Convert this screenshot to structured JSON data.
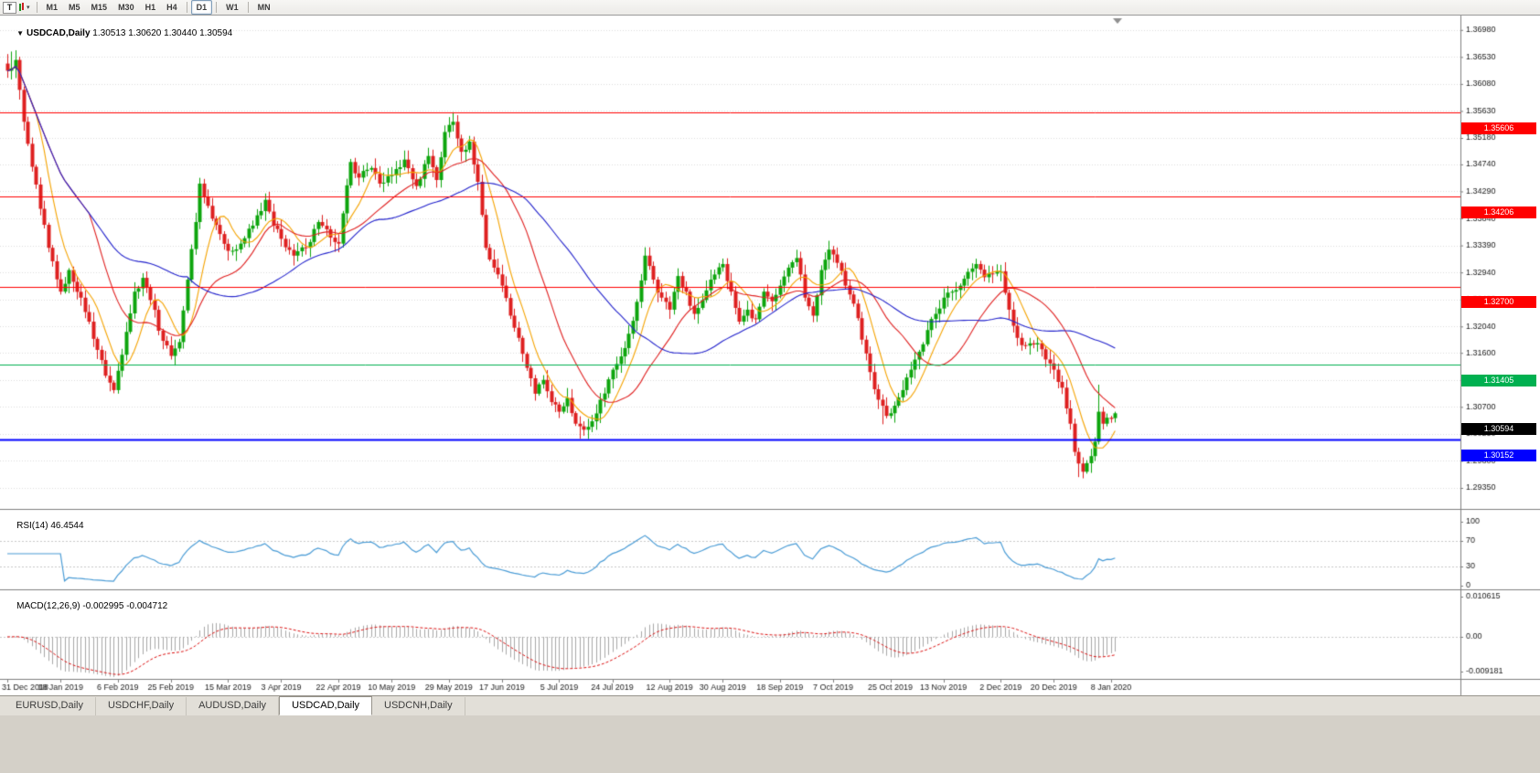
{
  "toolbar": {
    "tool_button": "T",
    "caret": "▾",
    "timeframes": [
      "M1",
      "M5",
      "M15",
      "M30",
      "H1",
      "H4",
      "D1",
      "W1",
      "MN"
    ],
    "active_timeframe": "D1"
  },
  "chart": {
    "collapse_arrow": "▼",
    "title": "USDCAD,Daily",
    "ohlc_text": "1.30513 1.30620 1.30440 1.30594"
  },
  "rsi": {
    "label": "RSI(14)",
    "value_text": "46.4544",
    "period": 14,
    "axis_labels": [
      100,
      70,
      30,
      0
    ],
    "color": "#4A9CD6"
  },
  "macd": {
    "label": "MACD(12,26,9)",
    "values_text": "-0.002995 -0.004712",
    "fast": 12,
    "slow": 26,
    "signal": 9,
    "axis_labels": [
      "0.010615",
      "0.00",
      "-0.009181"
    ],
    "scale_max": 0.010615,
    "scale_min": -0.009181,
    "histogram_color": "#A8A8A8",
    "signal_color": "#DD1111"
  },
  "chart_data": {
    "type": "candlestick",
    "symbol": "USDCAD",
    "timeframe": "Daily",
    "last": {
      "open": 1.30513,
      "high": 1.3062,
      "low": 1.3044,
      "close": 1.30594
    },
    "current_price_label": "1.30594",
    "price_range": {
      "max": 1.3722,
      "min": 1.29
    },
    "bars_total": 272,
    "up_color": "#0DA50D",
    "down_color": "#DE2020",
    "y_axis_labels": [
      "1.36980",
      "1.36530",
      "1.36080",
      "1.35630",
      "1.35180",
      "1.34740",
      "1.34290",
      "1.33840",
      "1.33390",
      "1.32940",
      "1.32490",
      "1.32040",
      "1.31600",
      "1.31150",
      "1.30700",
      "1.30250",
      "1.29800",
      "1.29350"
    ],
    "x_axis_labels": [
      "31 Dec 2018",
      "18 Jan 2019",
      "6 Feb 2019",
      "25 Feb 2019",
      "15 Mar 2019",
      "3 Apr 2019",
      "22 Apr 2019",
      "10 May 2019",
      "29 May 2019",
      "17 Jun 2019",
      "5 Jul 2019",
      "24 Jul 2019",
      "12 Aug 2019",
      "30 Aug 2019",
      "18 Sep 2019",
      "7 Oct 2019",
      "25 Oct 2019",
      "13 Nov 2019",
      "2 Dec 2019",
      "20 Dec 2019",
      "8 Jan 2020"
    ],
    "x_tick_indices": [
      0,
      13,
      27,
      40,
      54,
      67,
      81,
      94,
      108,
      121,
      135,
      148,
      162,
      175,
      189,
      202,
      216,
      229,
      243,
      256,
      270
    ],
    "levels": [
      {
        "price": 1.35606,
        "label": "1.35606",
        "color": "#FF0000",
        "width": 1,
        "type": "resistance"
      },
      {
        "price": 1.34206,
        "label": "1.34206",
        "color": "#FF0000",
        "width": 1,
        "type": "resistance"
      },
      {
        "price": 1.327,
        "label": "1.32700",
        "color": "#FF0000",
        "width": 1,
        "type": "resistance"
      },
      {
        "price": 1.31405,
        "label": "1.31405",
        "color": "#00B050",
        "width": 1,
        "type": "support"
      },
      {
        "price": 1.30152,
        "label": "1.30152",
        "color": "#0000FF",
        "width": 2,
        "type": "support"
      }
    ],
    "moving_averages": [
      {
        "period": 8,
        "color": "#F5A300"
      },
      {
        "period": 21,
        "color": "#E02020"
      },
      {
        "period": 45,
        "color": "#2222CC"
      }
    ],
    "close_anchors": [
      [
        0,
        1.363
      ],
      [
        2,
        1.3648
      ],
      [
        4,
        1.3545
      ],
      [
        6,
        1.347
      ],
      [
        8,
        1.34
      ],
      [
        10,
        1.3335
      ],
      [
        13,
        1.3262
      ],
      [
        15,
        1.3298
      ],
      [
        18,
        1.3252
      ],
      [
        20,
        1.3212
      ],
      [
        22,
        1.3165
      ],
      [
        24,
        1.3122
      ],
      [
        26,
        1.3098
      ],
      [
        29,
        1.3195
      ],
      [
        31,
        1.3262
      ],
      [
        33,
        1.3285
      ],
      [
        35,
        1.3248
      ],
      [
        38,
        1.318
      ],
      [
        40,
        1.3155
      ],
      [
        42,
        1.3178
      ],
      [
        44,
        1.3282
      ],
      [
        46,
        1.3378
      ],
      [
        47,
        1.3442
      ],
      [
        49,
        1.3405
      ],
      [
        52,
        1.3358
      ],
      [
        54,
        1.333
      ],
      [
        57,
        1.3342
      ],
      [
        60,
        1.3372
      ],
      [
        63,
        1.3415
      ],
      [
        65,
        1.3372
      ],
      [
        67,
        1.335
      ],
      [
        70,
        1.3322
      ],
      [
        73,
        1.3335
      ],
      [
        76,
        1.3378
      ],
      [
        79,
        1.3352
      ],
      [
        81,
        1.3342
      ],
      [
        84,
        1.3478
      ],
      [
        86,
        1.3452
      ],
      [
        89,
        1.3468
      ],
      [
        91,
        1.3442
      ],
      [
        94,
        1.3456
      ],
      [
        97,
        1.3482
      ],
      [
        100,
        1.3438
      ],
      [
        103,
        1.3488
      ],
      [
        105,
        1.3448
      ],
      [
        107,
        1.3528
      ],
      [
        109,
        1.3545
      ],
      [
        111,
        1.3495
      ],
      [
        113,
        1.3512
      ],
      [
        115,
        1.3445
      ],
      [
        117,
        1.3335
      ],
      [
        119,
        1.3302
      ],
      [
        121,
        1.3272
      ],
      [
        123,
        1.3222
      ],
      [
        125,
        1.3185
      ],
      [
        127,
        1.3135
      ],
      [
        129,
        1.3092
      ],
      [
        131,
        1.3115
      ],
      [
        133,
        1.3078
      ],
      [
        135,
        1.3062
      ],
      [
        137,
        1.3085
      ],
      [
        139,
        1.3042
      ],
      [
        141,
        1.3032
      ],
      [
        143,
        1.3046
      ],
      [
        145,
        1.3082
      ],
      [
        148,
        1.3132
      ],
      [
        151,
        1.3168
      ],
      [
        154,
        1.3245
      ],
      [
        156,
        1.3322
      ],
      [
        158,
        1.3282
      ],
      [
        160,
        1.3252
      ],
      [
        162,
        1.3232
      ],
      [
        164,
        1.3288
      ],
      [
        166,
        1.3262
      ],
      [
        168,
        1.3225
      ],
      [
        170,
        1.3248
      ],
      [
        172,
        1.3282
      ],
      [
        175,
        1.3308
      ],
      [
        177,
        1.3262
      ],
      [
        179,
        1.3212
      ],
      [
        181,
        1.3232
      ],
      [
        183,
        1.3216
      ],
      [
        185,
        1.3262
      ],
      [
        187,
        1.3246
      ],
      [
        189,
        1.3272
      ],
      [
        191,
        1.3302
      ],
      [
        193,
        1.3318
      ],
      [
        195,
        1.3252
      ],
      [
        197,
        1.3222
      ],
      [
        199,
        1.3298
      ],
      [
        201,
        1.3332
      ],
      [
        203,
        1.331
      ],
      [
        205,
        1.3272
      ],
      [
        207,
        1.3242
      ],
      [
        209,
        1.3182
      ],
      [
        211,
        1.3128
      ],
      [
        213,
        1.3082
      ],
      [
        215,
        1.3055
      ],
      [
        217,
        1.3072
      ],
      [
        219,
        1.3098
      ],
      [
        221,
        1.3132
      ],
      [
        223,
        1.3162
      ],
      [
        225,
        1.3198
      ],
      [
        227,
        1.3225
      ],
      [
        229,
        1.3252
      ],
      [
        231,
        1.3262
      ],
      [
        233,
        1.3272
      ],
      [
        235,
        1.3295
      ],
      [
        237,
        1.3308
      ],
      [
        239,
        1.3286
      ],
      [
        241,
        1.3292
      ],
      [
        243,
        1.3296
      ],
      [
        245,
        1.3232
      ],
      [
        247,
        1.3185
      ],
      [
        249,
        1.3172
      ],
      [
        251,
        1.3174
      ],
      [
        253,
        1.3166
      ],
      [
        256,
        1.3132
      ],
      [
        258,
        1.3102
      ],
      [
        260,
        1.3042
      ],
      [
        261,
        1.2995
      ],
      [
        263,
        1.2962
      ],
      [
        265,
        1.2988
      ],
      [
        266,
        1.3012
      ],
      [
        267,
        1.3062
      ],
      [
        268,
        1.3042
      ],
      [
        269,
        1.3052
      ],
      [
        270,
        1.305
      ],
      [
        271,
        1.30594
      ]
    ],
    "wick_overrides": [
      [
        1,
        1.3662,
        null
      ],
      [
        109,
        1.3561,
        null
      ],
      [
        110,
        1.3556,
        null
      ],
      [
        140,
        null,
        1.3017
      ],
      [
        141,
        null,
        1.3022
      ],
      [
        214,
        null,
        1.3041
      ],
      [
        262,
        null,
        1.2953
      ],
      [
        263,
        null,
        1.2951
      ],
      [
        267,
        1.3107,
        null
      ]
    ]
  },
  "tabs": {
    "items": [
      {
        "label": "EURUSD,Daily",
        "active": false
      },
      {
        "label": "USDCHF,Daily",
        "active": false
      },
      {
        "label": "AUDUSD,Daily",
        "active": false
      },
      {
        "label": "USDCAD,Daily",
        "active": true
      },
      {
        "label": "USDCNH,Daily",
        "active": false
      }
    ]
  }
}
